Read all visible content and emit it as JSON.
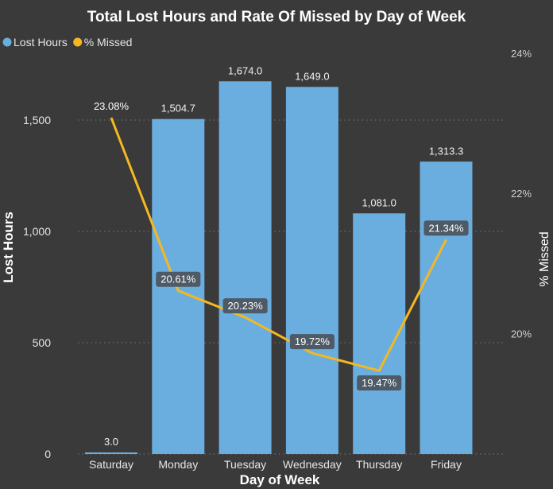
{
  "chart_data": {
    "type": "bar+line",
    "title": "Total Lost Hours and Rate Of Missed by Day of Week",
    "xlabel": "Day of Week",
    "ylabel": "Lost Hours",
    "y2label": "% Missed",
    "legend": {
      "placement": "top-left",
      "items": [
        {
          "label": "Lost Hours",
          "color": "#6aaee0"
        },
        {
          "label": "% Missed",
          "color": "#f5b820"
        }
      ]
    },
    "categories": [
      "Saturday",
      "Monday",
      "Tuesday",
      "Wednesday",
      "Thursday",
      "Friday"
    ],
    "series": [
      {
        "name": "Lost Hours",
        "kind": "bar",
        "axis": "left",
        "values": [
          3.0,
          1504.7,
          1674.0,
          1649.0,
          1081.0,
          1313.3
        ],
        "labels": [
          "3.0",
          "1,504.7",
          "1,674.0",
          "1,649.0",
          "1,081.0",
          "1,313.3"
        ],
        "color": "#6aaee0"
      },
      {
        "name": "% Missed",
        "kind": "line",
        "axis": "right",
        "values": [
          23.08,
          20.61,
          20.23,
          19.72,
          19.47,
          21.34
        ],
        "labels": [
          "23.08%",
          "20.61%",
          "20.23%",
          "19.72%",
          "19.47%",
          "21.34%"
        ],
        "color": "#f5b820"
      }
    ],
    "ylim": [
      0,
      1800
    ],
    "yticks": [
      0,
      500,
      1000,
      1500
    ],
    "ytick_labels": [
      "0",
      "500",
      "1,000",
      "1,500"
    ],
    "y2lim": [
      18.28,
      24.0
    ],
    "y2ticks": [
      20,
      22,
      24
    ],
    "y2tick_labels": [
      "20%",
      "22%",
      "24%"
    ],
    "grid": true
  }
}
